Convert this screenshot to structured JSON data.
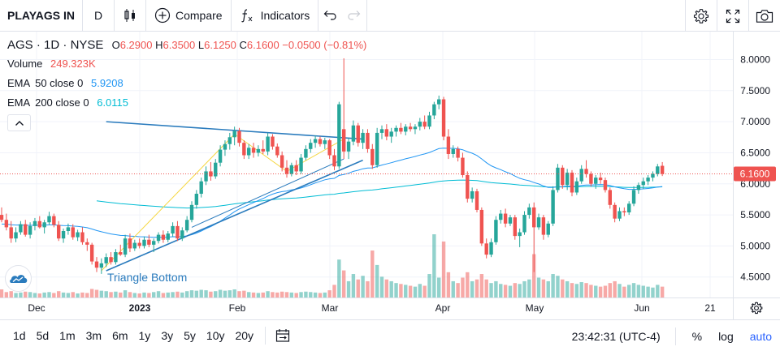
{
  "toolbar": {
    "symbol": "PLAYAGS IN",
    "interval": "D",
    "compare_label": "Compare",
    "indicators_label": "Indicators"
  },
  "legend": {
    "symbol": "AGS",
    "interval": "1D",
    "exchange": "NYSE",
    "open_label": "O",
    "open": "6.2900",
    "high_label": "H",
    "high": "6.3500",
    "low_label": "L",
    "low": "6.1250",
    "close_label": "C",
    "close": "6.1600",
    "change": "−0.0500 (−0.81%)",
    "volume_label": "Volume",
    "volume": "249.323K",
    "ema50_label": "EMA",
    "ema50_params": "50 close 0",
    "ema50_value": "5.9208",
    "ema200_label": "EMA",
    "ema200_params": "200 close 0",
    "ema200_value": "6.0115"
  },
  "annotation": "Triangle Bottom",
  "price_tag": "6.1600",
  "bottombar": {
    "ranges": [
      "1d",
      "5d",
      "1m",
      "3m",
      "6m",
      "1y",
      "3y",
      "5y",
      "10y",
      "20y"
    ],
    "time": "23:42:31 (UTC-4)",
    "percent_label": "%",
    "log_label": "log",
    "auto_label": "auto"
  },
  "colors": {
    "up": "#26a69a",
    "down": "#ef5350",
    "ema50": "#2196f3",
    "ema200": "#00bcd4",
    "trendline": "#2a7bbd",
    "pattern": "#f5d742",
    "accent": "#2962ff"
  },
  "icons": [
    "candles-icon",
    "plus-circle-icon",
    "fx-icon",
    "undo-icon",
    "redo-icon",
    "gear-icon",
    "fullscreen-icon",
    "camera-icon",
    "chevron-up-icon",
    "calendar-range-icon",
    "tradingview-logo-icon",
    "axis-settings-icon"
  ],
  "chart_data": {
    "type": "candlestick",
    "y_ticks": [
      "8.0000",
      "7.5000",
      "7.0000",
      "6.5000",
      "6.0000",
      "5.5000",
      "5.0000",
      "4.5000"
    ],
    "ylim": [
      4.17,
      8.45
    ],
    "x_ticks": [
      "Dec",
      "2023",
      "Feb",
      "Mar",
      "Apr",
      "May",
      "Jun",
      "21"
    ],
    "last_price": 6.16,
    "candles": [
      {
        "o": 5.5,
        "h": 5.62,
        "l": 5.38,
        "c": 5.42,
        "v": 90
      },
      {
        "o": 5.42,
        "h": 5.52,
        "l": 5.25,
        "c": 5.3,
        "v": 60
      },
      {
        "o": 5.3,
        "h": 5.4,
        "l": 5.05,
        "c": 5.12,
        "v": 70
      },
      {
        "o": 5.12,
        "h": 5.3,
        "l": 5.06,
        "c": 5.22,
        "v": 50
      },
      {
        "o": 5.22,
        "h": 5.4,
        "l": 5.18,
        "c": 5.35,
        "v": 55
      },
      {
        "o": 5.35,
        "h": 5.42,
        "l": 5.15,
        "c": 5.18,
        "v": 65
      },
      {
        "o": 5.18,
        "h": 5.38,
        "l": 5.12,
        "c": 5.32,
        "v": 60
      },
      {
        "o": 5.32,
        "h": 5.45,
        "l": 5.25,
        "c": 5.4,
        "v": 50
      },
      {
        "o": 5.4,
        "h": 5.48,
        "l": 5.28,
        "c": 5.3,
        "v": 45
      },
      {
        "o": 5.3,
        "h": 5.42,
        "l": 5.2,
        "c": 5.38,
        "v": 55
      },
      {
        "o": 5.38,
        "h": 5.55,
        "l": 5.34,
        "c": 5.48,
        "v": 60
      },
      {
        "o": 5.48,
        "h": 5.52,
        "l": 5.3,
        "c": 5.34,
        "v": 50
      },
      {
        "o": 5.34,
        "h": 5.4,
        "l": 5.08,
        "c": 5.12,
        "v": 70
      },
      {
        "o": 5.12,
        "h": 5.28,
        "l": 5.05,
        "c": 5.24,
        "v": 55
      },
      {
        "o": 5.24,
        "h": 5.36,
        "l": 5.18,
        "c": 5.3,
        "v": 50
      },
      {
        "o": 5.3,
        "h": 5.35,
        "l": 5.1,
        "c": 5.14,
        "v": 60
      },
      {
        "o": 5.14,
        "h": 5.26,
        "l": 5.08,
        "c": 5.22,
        "v": 45
      },
      {
        "o": 5.22,
        "h": 5.3,
        "l": 5.02,
        "c": 5.06,
        "v": 55
      },
      {
        "o": 5.06,
        "h": 5.12,
        "l": 4.92,
        "c": 5.02,
        "v": 50
      },
      {
        "o": 5.02,
        "h": 5.05,
        "l": 4.7,
        "c": 4.75,
        "v": 95
      },
      {
        "o": 4.75,
        "h": 4.82,
        "l": 4.58,
        "c": 4.65,
        "v": 85
      },
      {
        "o": 4.65,
        "h": 4.8,
        "l": 4.55,
        "c": 4.72,
        "v": 75
      },
      {
        "o": 4.72,
        "h": 4.88,
        "l": 4.66,
        "c": 4.82,
        "v": 70
      },
      {
        "o": 4.82,
        "h": 4.9,
        "l": 4.7,
        "c": 4.74,
        "v": 60
      },
      {
        "o": 4.74,
        "h": 4.95,
        "l": 4.7,
        "c": 4.9,
        "v": 65
      },
      {
        "o": 4.9,
        "h": 5.02,
        "l": 4.84,
        "c": 4.86,
        "v": 55
      },
      {
        "o": 4.86,
        "h": 5.18,
        "l": 4.82,
        "c": 5.12,
        "v": 80
      },
      {
        "o": 5.12,
        "h": 5.2,
        "l": 4.9,
        "c": 4.96,
        "v": 60
      },
      {
        "o": 4.96,
        "h": 5.1,
        "l": 4.92,
        "c": 5.05,
        "v": 50
      },
      {
        "o": 5.05,
        "h": 5.12,
        "l": 4.96,
        "c": 5.0,
        "v": 45
      },
      {
        "o": 5.0,
        "h": 5.15,
        "l": 4.96,
        "c": 5.1,
        "v": 55
      },
      {
        "o": 5.1,
        "h": 5.18,
        "l": 4.98,
        "c": 5.02,
        "v": 50
      },
      {
        "o": 5.02,
        "h": 5.12,
        "l": 4.9,
        "c": 5.08,
        "v": 60
      },
      {
        "o": 5.08,
        "h": 5.22,
        "l": 5.04,
        "c": 5.18,
        "v": 70
      },
      {
        "o": 5.18,
        "h": 5.25,
        "l": 5.05,
        "c": 5.1,
        "v": 50
      },
      {
        "o": 5.1,
        "h": 5.24,
        "l": 5.06,
        "c": 5.2,
        "v": 55
      },
      {
        "o": 5.2,
        "h": 5.38,
        "l": 5.15,
        "c": 5.32,
        "v": 60
      },
      {
        "o": 5.32,
        "h": 5.4,
        "l": 5.08,
        "c": 5.12,
        "v": 65
      },
      {
        "o": 5.12,
        "h": 5.3,
        "l": 5.08,
        "c": 5.25,
        "v": 55
      },
      {
        "o": 5.25,
        "h": 5.48,
        "l": 5.22,
        "c": 5.42,
        "v": 70
      },
      {
        "o": 5.42,
        "h": 5.72,
        "l": 5.38,
        "c": 5.66,
        "v": 80
      },
      {
        "o": 5.66,
        "h": 5.9,
        "l": 5.6,
        "c": 5.84,
        "v": 75
      },
      {
        "o": 5.84,
        "h": 6.1,
        "l": 5.78,
        "c": 6.04,
        "v": 85
      },
      {
        "o": 6.04,
        "h": 6.28,
        "l": 5.98,
        "c": 6.2,
        "v": 80
      },
      {
        "o": 6.2,
        "h": 6.35,
        "l": 6.05,
        "c": 6.12,
        "v": 65
      },
      {
        "o": 6.12,
        "h": 6.4,
        "l": 6.08,
        "c": 6.34,
        "v": 70
      },
      {
        "o": 6.34,
        "h": 6.62,
        "l": 6.28,
        "c": 6.55,
        "v": 85
      },
      {
        "o": 6.55,
        "h": 6.7,
        "l": 6.45,
        "c": 6.64,
        "v": 75
      },
      {
        "o": 6.64,
        "h": 6.82,
        "l": 6.55,
        "c": 6.75,
        "v": 80
      },
      {
        "o": 6.75,
        "h": 6.92,
        "l": 6.62,
        "c": 6.85,
        "v": 90
      },
      {
        "o": 6.85,
        "h": 6.9,
        "l": 6.6,
        "c": 6.66,
        "v": 70
      },
      {
        "o": 6.66,
        "h": 6.7,
        "l": 6.4,
        "c": 6.46,
        "v": 75
      },
      {
        "o": 6.46,
        "h": 6.64,
        "l": 6.4,
        "c": 6.58,
        "v": 60
      },
      {
        "o": 6.58,
        "h": 6.66,
        "l": 6.42,
        "c": 6.5,
        "v": 55
      },
      {
        "o": 6.5,
        "h": 6.62,
        "l": 6.44,
        "c": 6.56,
        "v": 50
      },
      {
        "o": 6.56,
        "h": 6.7,
        "l": 6.48,
        "c": 6.52,
        "v": 55
      },
      {
        "o": 6.52,
        "h": 6.82,
        "l": 6.46,
        "c": 6.76,
        "v": 70
      },
      {
        "o": 6.76,
        "h": 6.8,
        "l": 6.55,
        "c": 6.6,
        "v": 60
      },
      {
        "o": 6.6,
        "h": 6.65,
        "l": 6.42,
        "c": 6.46,
        "v": 55
      },
      {
        "o": 6.46,
        "h": 6.52,
        "l": 6.2,
        "c": 6.26,
        "v": 65
      },
      {
        "o": 6.26,
        "h": 6.38,
        "l": 6.1,
        "c": 6.16,
        "v": 60
      },
      {
        "o": 6.16,
        "h": 6.34,
        "l": 6.12,
        "c": 6.3,
        "v": 55
      },
      {
        "o": 6.3,
        "h": 6.38,
        "l": 6.14,
        "c": 6.2,
        "v": 50
      },
      {
        "o": 6.2,
        "h": 6.48,
        "l": 6.16,
        "c": 6.42,
        "v": 60
      },
      {
        "o": 6.42,
        "h": 6.62,
        "l": 6.38,
        "c": 6.56,
        "v": 65
      },
      {
        "o": 6.56,
        "h": 6.72,
        "l": 6.5,
        "c": 6.66,
        "v": 60
      },
      {
        "o": 6.66,
        "h": 6.78,
        "l": 6.58,
        "c": 6.72,
        "v": 55
      },
      {
        "o": 6.72,
        "h": 6.76,
        "l": 6.6,
        "c": 6.64,
        "v": 50
      },
      {
        "o": 6.64,
        "h": 6.74,
        "l": 6.56,
        "c": 6.7,
        "v": 55
      },
      {
        "o": 6.7,
        "h": 6.72,
        "l": 6.4,
        "c": 6.46,
        "v": 80
      },
      {
        "o": 6.46,
        "h": 6.56,
        "l": 6.22,
        "c": 6.28,
        "v": 140
      },
      {
        "o": 6.28,
        "h": 7.32,
        "l": 6.24,
        "c": 7.28,
        "v": 420
      },
      {
        "o": 6.88,
        "h": 8.02,
        "l": 6.4,
        "c": 6.52,
        "v": 300
      },
      {
        "o": 6.52,
        "h": 6.74,
        "l": 6.4,
        "c": 6.68,
        "v": 180
      },
      {
        "o": 6.68,
        "h": 7.02,
        "l": 6.62,
        "c": 6.94,
        "v": 260
      },
      {
        "o": 6.94,
        "h": 6.98,
        "l": 6.6,
        "c": 6.66,
        "v": 200
      },
      {
        "o": 6.66,
        "h": 6.88,
        "l": 6.56,
        "c": 6.82,
        "v": 240
      },
      {
        "o": 6.82,
        "h": 6.88,
        "l": 6.5,
        "c": 6.56,
        "v": 180
      },
      {
        "o": 6.56,
        "h": 6.64,
        "l": 6.24,
        "c": 6.3,
        "v": 520
      },
      {
        "o": 6.3,
        "h": 6.9,
        "l": 6.26,
        "c": 6.82,
        "v": 360
      },
      {
        "o": 6.82,
        "h": 6.94,
        "l": 6.72,
        "c": 6.88,
        "v": 230
      },
      {
        "o": 6.88,
        "h": 6.96,
        "l": 6.7,
        "c": 6.76,
        "v": 200
      },
      {
        "o": 6.76,
        "h": 6.9,
        "l": 6.66,
        "c": 6.84,
        "v": 180
      },
      {
        "o": 6.84,
        "h": 6.94,
        "l": 6.76,
        "c": 6.9,
        "v": 160
      },
      {
        "o": 6.9,
        "h": 6.98,
        "l": 6.8,
        "c": 6.84,
        "v": 150
      },
      {
        "o": 6.84,
        "h": 6.96,
        "l": 6.78,
        "c": 6.92,
        "v": 140
      },
      {
        "o": 6.92,
        "h": 6.98,
        "l": 6.84,
        "c": 6.88,
        "v": 130
      },
      {
        "o": 6.88,
        "h": 6.96,
        "l": 6.8,
        "c": 6.92,
        "v": 120
      },
      {
        "o": 6.92,
        "h": 7.06,
        "l": 6.86,
        "c": 7.0,
        "v": 150
      },
      {
        "o": 7.0,
        "h": 7.1,
        "l": 6.88,
        "c": 6.92,
        "v": 130
      },
      {
        "o": 6.92,
        "h": 7.16,
        "l": 6.88,
        "c": 7.1,
        "v": 260
      },
      {
        "o": 7.1,
        "h": 7.32,
        "l": 7.04,
        "c": 7.28,
        "v": 700
      },
      {
        "o": 7.28,
        "h": 7.42,
        "l": 7.2,
        "c": 7.36,
        "v": 220
      },
      {
        "o": 7.36,
        "h": 7.4,
        "l": 6.7,
        "c": 6.76,
        "v": 620
      },
      {
        "o": 6.76,
        "h": 6.88,
        "l": 6.4,
        "c": 6.48,
        "v": 280
      },
      {
        "o": 6.48,
        "h": 6.62,
        "l": 6.42,
        "c": 6.56,
        "v": 180
      },
      {
        "o": 6.56,
        "h": 6.6,
        "l": 6.36,
        "c": 6.42,
        "v": 160
      },
      {
        "o": 6.42,
        "h": 6.5,
        "l": 6.1,
        "c": 6.14,
        "v": 220
      },
      {
        "o": 6.14,
        "h": 6.2,
        "l": 5.7,
        "c": 5.76,
        "v": 280
      },
      {
        "o": 5.76,
        "h": 5.94,
        "l": 5.7,
        "c": 5.88,
        "v": 180
      },
      {
        "o": 5.88,
        "h": 5.92,
        "l": 5.54,
        "c": 5.58,
        "v": 200
      },
      {
        "o": 5.58,
        "h": 5.62,
        "l": 5.0,
        "c": 5.04,
        "v": 260
      },
      {
        "o": 5.04,
        "h": 5.12,
        "l": 4.8,
        "c": 4.86,
        "v": 200
      },
      {
        "o": 4.86,
        "h": 5.12,
        "l": 4.82,
        "c": 5.06,
        "v": 160
      },
      {
        "o": 5.06,
        "h": 5.48,
        "l": 5.02,
        "c": 5.42,
        "v": 180
      },
      {
        "o": 5.42,
        "h": 5.58,
        "l": 5.36,
        "c": 5.52,
        "v": 150
      },
      {
        "o": 5.52,
        "h": 5.6,
        "l": 5.3,
        "c": 5.36,
        "v": 140
      },
      {
        "o": 5.36,
        "h": 5.5,
        "l": 5.32,
        "c": 5.46,
        "v": 130
      },
      {
        "o": 5.46,
        "h": 5.5,
        "l": 5.1,
        "c": 5.16,
        "v": 160
      },
      {
        "o": 5.16,
        "h": 5.28,
        "l": 4.98,
        "c": 5.22,
        "v": 150
      },
      {
        "o": 5.22,
        "h": 5.56,
        "l": 5.18,
        "c": 5.5,
        "v": 180
      },
      {
        "o": 5.5,
        "h": 5.68,
        "l": 5.44,
        "c": 5.62,
        "v": 200
      },
      {
        "o": 5.62,
        "h": 5.7,
        "l": 4.58,
        "c": 5.3,
        "v": 480
      },
      {
        "o": 5.3,
        "h": 5.52,
        "l": 5.26,
        "c": 5.46,
        "v": 220
      },
      {
        "o": 5.46,
        "h": 5.5,
        "l": 5.1,
        "c": 5.18,
        "v": 200
      },
      {
        "o": 5.18,
        "h": 5.4,
        "l": 5.14,
        "c": 5.36,
        "v": 180
      },
      {
        "o": 5.36,
        "h": 5.96,
        "l": 5.32,
        "c": 5.9,
        "v": 260
      },
      {
        "o": 5.9,
        "h": 6.32,
        "l": 5.86,
        "c": 6.26,
        "v": 240
      },
      {
        "o": 6.26,
        "h": 6.3,
        "l": 5.92,
        "c": 5.98,
        "v": 200
      },
      {
        "o": 5.98,
        "h": 6.24,
        "l": 5.9,
        "c": 6.18,
        "v": 180
      },
      {
        "o": 6.18,
        "h": 6.22,
        "l": 5.8,
        "c": 5.86,
        "v": 160
      },
      {
        "o": 5.86,
        "h": 6.1,
        "l": 5.82,
        "c": 6.04,
        "v": 150
      },
      {
        "o": 6.04,
        "h": 6.3,
        "l": 6.0,
        "c": 6.24,
        "v": 170
      },
      {
        "o": 6.24,
        "h": 6.38,
        "l": 6.1,
        "c": 6.16,
        "v": 160
      },
      {
        "o": 6.16,
        "h": 6.2,
        "l": 5.96,
        "c": 6.0,
        "v": 140
      },
      {
        "o": 6.0,
        "h": 6.14,
        "l": 5.92,
        "c": 6.1,
        "v": 130
      },
      {
        "o": 6.1,
        "h": 6.18,
        "l": 6.0,
        "c": 6.06,
        "v": 120
      },
      {
        "o": 6.06,
        "h": 6.1,
        "l": 5.86,
        "c": 5.9,
        "v": 130
      },
      {
        "o": 5.9,
        "h": 5.94,
        "l": 5.6,
        "c": 5.66,
        "v": 160
      },
      {
        "o": 5.66,
        "h": 5.7,
        "l": 5.38,
        "c": 5.44,
        "v": 180
      },
      {
        "o": 5.44,
        "h": 5.62,
        "l": 5.4,
        "c": 5.56,
        "v": 150
      },
      {
        "o": 5.56,
        "h": 5.62,
        "l": 5.48,
        "c": 5.54,
        "v": 120
      },
      {
        "o": 5.54,
        "h": 5.72,
        "l": 5.5,
        "c": 5.68,
        "v": 140
      },
      {
        "o": 5.68,
        "h": 5.96,
        "l": 5.64,
        "c": 5.9,
        "v": 160
      },
      {
        "o": 5.9,
        "h": 6.02,
        "l": 5.84,
        "c": 5.98,
        "v": 140
      },
      {
        "o": 5.98,
        "h": 6.1,
        "l": 5.92,
        "c": 6.04,
        "v": 130
      },
      {
        "o": 6.04,
        "h": 6.14,
        "l": 5.98,
        "c": 6.1,
        "v": 120
      },
      {
        "o": 6.1,
        "h": 6.2,
        "l": 6.04,
        "c": 6.16,
        "v": 110
      },
      {
        "o": 6.16,
        "h": 6.32,
        "l": 6.12,
        "c": 6.28,
        "v": 140
      },
      {
        "o": 6.29,
        "h": 6.35,
        "l": 6.125,
        "c": 6.16,
        "v": 120
      }
    ]
  }
}
